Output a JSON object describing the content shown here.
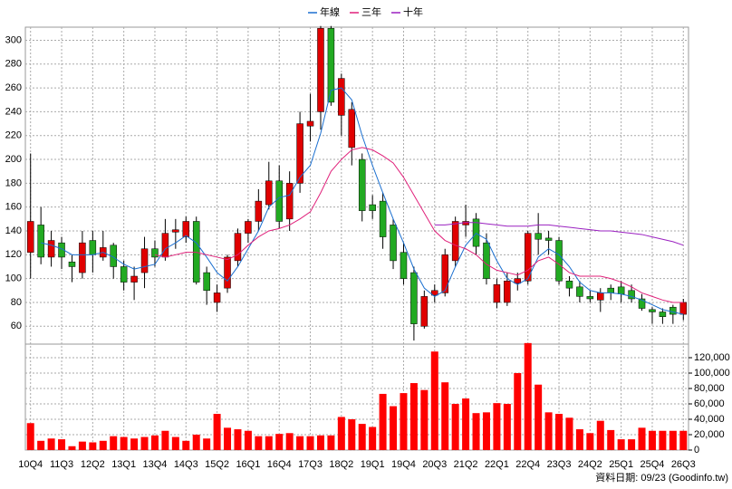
{
  "chart_data": [
    {
      "type": "candlestick",
      "categories": [
        "10Q4",
        null,
        null,
        "11Q3",
        null,
        null,
        "12Q2",
        null,
        null,
        "13Q1",
        null,
        null,
        "13Q4",
        null,
        null,
        "14Q3",
        null,
        null,
        "15Q2",
        null,
        null,
        "16Q1",
        null,
        null,
        "16Q4",
        null,
        null,
        "17Q3",
        null,
        null,
        "18Q2",
        null,
        null,
        "19Q1",
        null,
        null,
        "19Q4",
        null,
        null,
        "20Q3",
        null,
        null,
        "21Q2",
        null,
        null,
        "22Q1",
        null,
        null,
        "22Q4",
        null,
        null,
        "23Q3",
        null,
        null,
        "24Q2",
        null,
        null,
        "25Q1",
        null,
        null,
        "25Q4",
        null,
        null,
        "26Q3"
      ],
      "open": [
        122,
        145,
        118,
        130,
        114,
        105,
        132,
        118,
        128,
        110,
        97,
        105,
        125,
        118,
        139,
        135,
        148,
        105,
        80,
        92,
        115,
        138,
        148,
        162,
        182,
        150,
        180,
        228,
        240,
        310,
        237,
        210,
        200,
        162,
        165,
        145,
        122,
        105,
        60,
        86,
        88,
        115,
        145,
        150,
        130,
        80,
        80,
        96,
        98,
        138,
        134,
        132,
        98,
        93,
        85,
        82,
        92,
        93,
        90,
        83,
        74,
        72,
        76,
        70
      ],
      "high": [
        205,
        160,
        140,
        135,
        120,
        140,
        140,
        140,
        130,
        115,
        110,
        135,
        132,
        150,
        150,
        152,
        152,
        110,
        95,
        120,
        142,
        150,
        175,
        198,
        195,
        190,
        240,
        255,
        312,
        312,
        272,
        248,
        205,
        170,
        172,
        150,
        130,
        110,
        90,
        95,
        125,
        152,
        162,
        155,
        138,
        100,
        105,
        105,
        140,
        155,
        140,
        135,
        102,
        98,
        90,
        92,
        95,
        98,
        95,
        87,
        76,
        75,
        78,
        83
      ],
      "low": [
        100,
        112,
        110,
        108,
        97,
        100,
        105,
        115,
        100,
        90,
        82,
        92,
        110,
        115,
        125,
        130,
        95,
        78,
        72,
        88,
        110,
        130,
        140,
        158,
        142,
        140,
        172,
        215,
        225,
        245,
        220,
        195,
        148,
        150,
        125,
        108,
        95,
        48,
        58,
        80,
        85,
        110,
        135,
        120,
        95,
        75,
        77,
        90,
        95,
        120,
        120,
        95,
        85,
        80,
        80,
        72,
        82,
        80,
        80,
        73,
        62,
        62,
        62,
        65
      ],
      "close": [
        148,
        118,
        132,
        118,
        110,
        130,
        120,
        126,
        110,
        97,
        102,
        125,
        118,
        138,
        141,
        148,
        97,
        90,
        88,
        118,
        138,
        148,
        165,
        182,
        148,
        180,
        230,
        232,
        310,
        248,
        268,
        242,
        157,
        157,
        135,
        115,
        100,
        62,
        85,
        90,
        120,
        148,
        148,
        127,
        100,
        95,
        98,
        100,
        138,
        133,
        132,
        98,
        92,
        85,
        83,
        88,
        88,
        87,
        83,
        75,
        72,
        68,
        70,
        80
      ],
      "up_color": "#e00000",
      "down_color": "#22aa22",
      "series": [
        {
          "name": "年線",
          "color": "#1a6fd0",
          "values": [
            null,
            130,
            128,
            125,
            120,
            120,
            120,
            122,
            118,
            112,
            108,
            110,
            112,
            125,
            130,
            136,
            130,
            118,
            105,
            98,
            110,
            125,
            140,
            160,
            168,
            170,
            185,
            195,
            222,
            258,
            260,
            250,
            220,
            195,
            172,
            150,
            130,
            108,
            92,
            85,
            90,
            110,
            128,
            138,
            133,
            115,
            100,
            95,
            100,
            118,
            125,
            120,
            110,
            97,
            90,
            88,
            88,
            87,
            85,
            82,
            78,
            74,
            72,
            70
          ]
        },
        {
          "name": "三年",
          "color": "#e0207a",
          "values": [
            null,
            null,
            null,
            null,
            null,
            null,
            null,
            null,
            null,
            null,
            null,
            null,
            120,
            118,
            120,
            122,
            122,
            120,
            118,
            116,
            120,
            128,
            135,
            140,
            142,
            145,
            150,
            156,
            172,
            190,
            200,
            208,
            210,
            208,
            203,
            197,
            185,
            170,
            155,
            140,
            132,
            128,
            125,
            120,
            112,
            107,
            105,
            103,
            107,
            115,
            118,
            112,
            105,
            102,
            102,
            102,
            100,
            97,
            93,
            88,
            85,
            82,
            80,
            80
          ]
        },
        {
          "name": "十年",
          "color": "#9a20c0",
          "values": [
            null,
            null,
            null,
            null,
            null,
            null,
            null,
            null,
            null,
            null,
            null,
            null,
            null,
            null,
            null,
            null,
            null,
            null,
            null,
            null,
            null,
            null,
            null,
            null,
            null,
            null,
            null,
            null,
            null,
            null,
            null,
            null,
            null,
            null,
            null,
            null,
            null,
            null,
            null,
            145,
            145,
            146,
            147,
            147,
            146,
            145,
            144,
            144,
            144,
            145,
            145,
            144,
            143,
            142,
            141,
            140,
            140,
            139,
            138,
            137,
            135,
            133,
            131,
            128
          ]
        }
      ],
      "ylim": [
        45,
        311
      ],
      "yticks": [
        60,
        80,
        100,
        120,
        140,
        160,
        180,
        200,
        220,
        240,
        260,
        280,
        300
      ],
      "grid": true
    },
    {
      "type": "bar",
      "color": "#ff0000",
      "values": [
        35000,
        12000,
        15000,
        14000,
        5000,
        11000,
        10000,
        12000,
        18000,
        17000,
        15000,
        17000,
        19000,
        25000,
        17000,
        12000,
        20000,
        15000,
        47000,
        29000,
        27000,
        25000,
        18000,
        18000,
        21000,
        22000,
        18000,
        18000,
        19000,
        19000,
        43000,
        40000,
        34000,
        30000,
        73000,
        57000,
        74000,
        87000,
        78000,
        128000,
        88000,
        60000,
        67000,
        48000,
        49000,
        61000,
        60000,
        100000,
        139000,
        85000,
        49000,
        47000,
        42000,
        27000,
        22000,
        38000,
        26000,
        14000,
        14000,
        29000,
        25000,
        25000,
        25000,
        25000
      ],
      "ylim": [
        0,
        140000
      ],
      "yticks": [
        0,
        {
          "value": 20000,
          "label": "20,000"
        },
        {
          "value": 40000,
          "label": "40,000"
        },
        {
          "value": 60000,
          "label": "60,000"
        },
        {
          "value": 80000,
          "label": "80,000"
        },
        {
          "value": 100000,
          "label": "100,000"
        },
        {
          "value": 120000,
          "label": "120,000"
        }
      ],
      "grid": true,
      "source": "資料日期: 09/23 (Goodinfo.tw)"
    }
  ]
}
